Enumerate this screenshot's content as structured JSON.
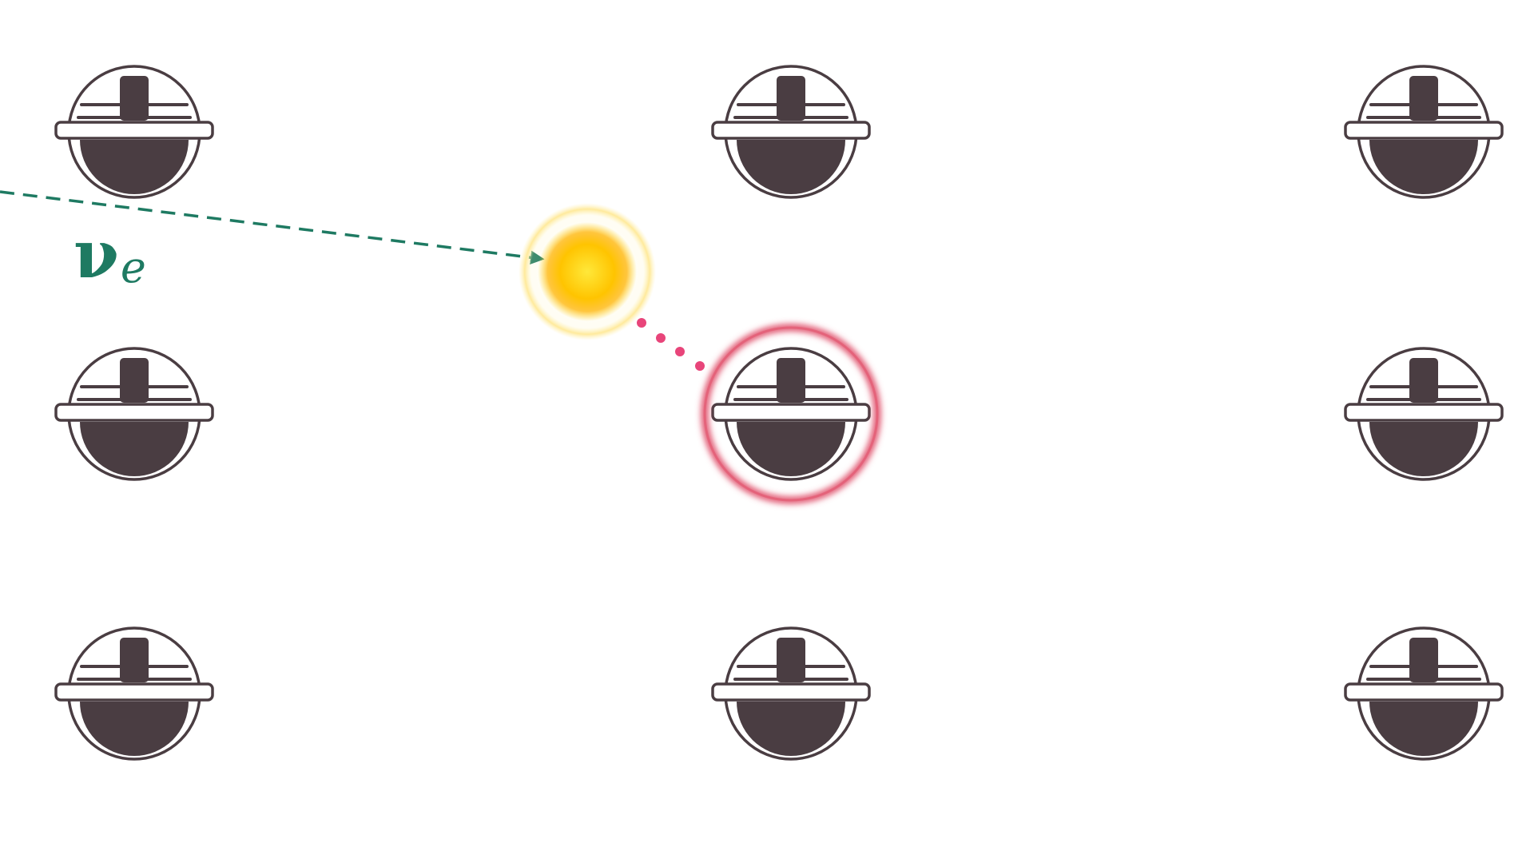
{
  "diagram": {
    "particle_label": {
      "symbol": "ν",
      "subscript": "e"
    },
    "colors": {
      "background": "#ffffff",
      "neutrino_track": "#1e7a62",
      "interaction_glow": "#ffc400",
      "emitted_track": "#e8457a",
      "hit_module_ring": "#e0506a",
      "module_stroke": "#4a3d42",
      "module_fill": "#ffffff"
    },
    "icons": {
      "detector_module": "optical-module-icon",
      "interaction": "interaction-glow-icon"
    },
    "modules": {
      "rows": 3,
      "columns": 3,
      "hit_module": {
        "row": 2,
        "column": 2
      }
    }
  }
}
